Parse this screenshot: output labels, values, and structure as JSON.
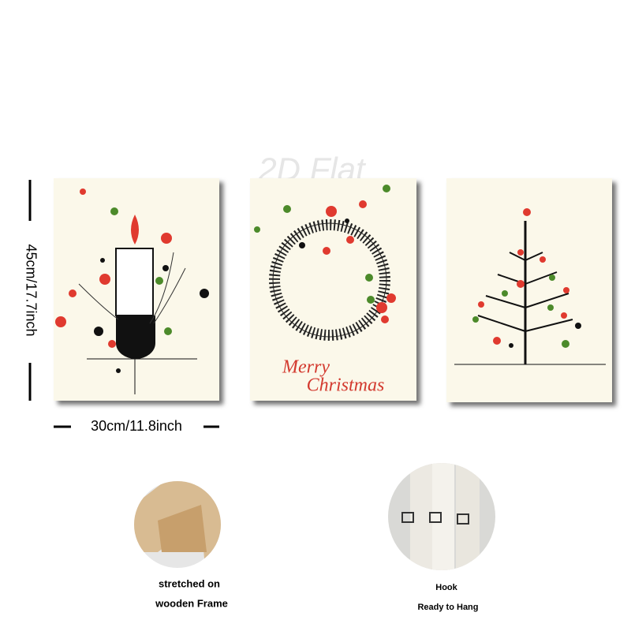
{
  "watermark": "2D Flat",
  "dimensions": {
    "height": "45cm/17.7inch",
    "width": "30cm/11.8inch"
  },
  "panels": [
    {
      "greeting": [
        "Merry",
        "Christmas"
      ]
    }
  ],
  "details": [
    {
      "caption": [
        "stretched on",
        "wooden Frame"
      ]
    },
    {
      "caption": [
        "Hook",
        "Ready to Hang"
      ]
    }
  ]
}
